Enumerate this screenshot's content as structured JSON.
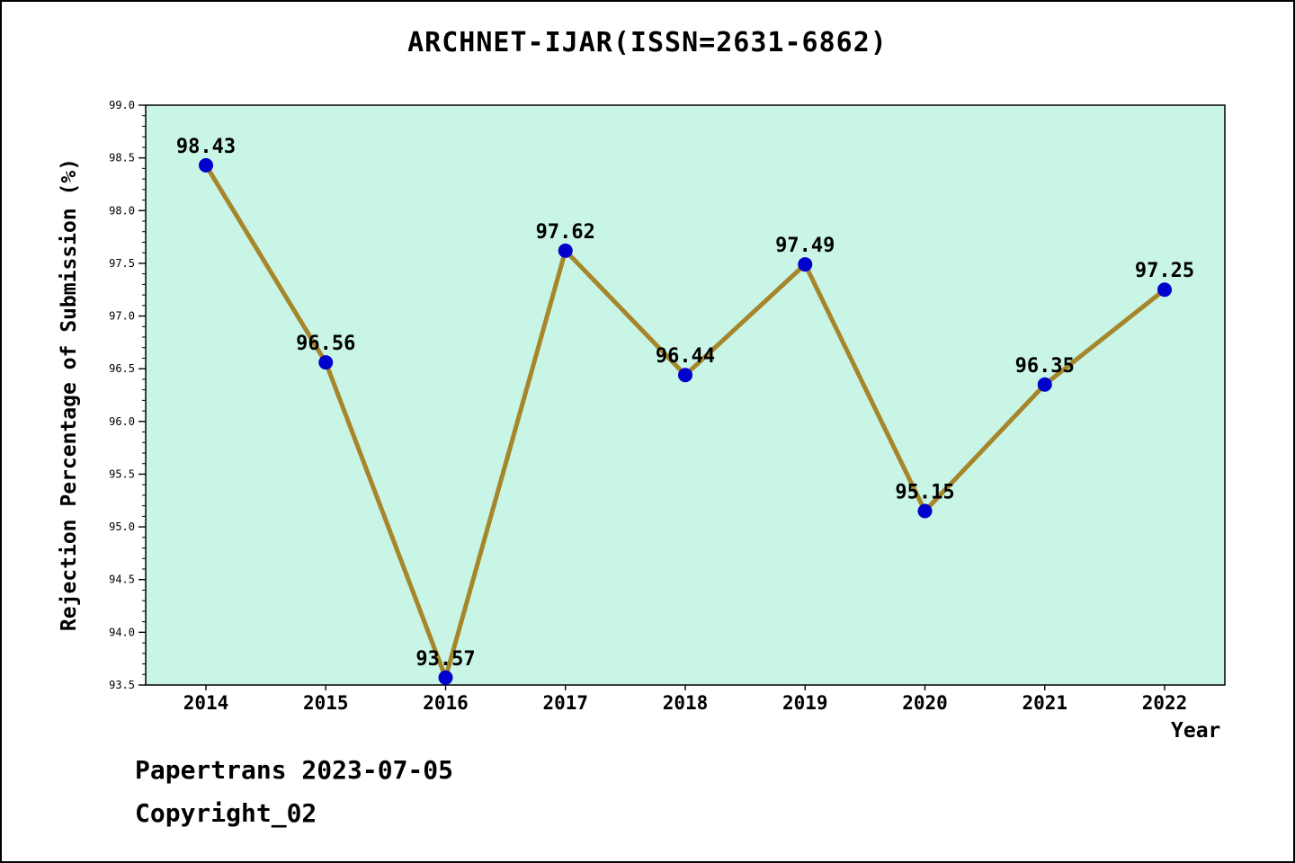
{
  "title": "ARCHNET-IJAR(ISSN=2631-6862)",
  "chart_data": {
    "type": "line",
    "x": [
      2014,
      2015,
      2016,
      2017,
      2018,
      2019,
      2020,
      2021,
      2022
    ],
    "series": [
      {
        "name": "Rejection Percentage of Submission",
        "values": [
          98.43,
          96.56,
          93.57,
          97.62,
          96.44,
          97.49,
          95.15,
          96.35,
          97.25
        ]
      }
    ],
    "title": "ARCHNET-IJAR(ISSN=2631-6862)",
    "xlabel": "Year",
    "ylabel": "Rejection Percentage of Submission (%)",
    "ylim": [
      93.5,
      99.0
    ],
    "y_major_tick": 0.5,
    "y_minor_tick": 0.1,
    "grid": false,
    "legend": false,
    "line_color": "#a6862b",
    "marker_color": "#0000cd",
    "plot_bg": "#c9f5e6",
    "axis_color": "#000000"
  },
  "footer": {
    "line1": "Papertrans 2023-07-05",
    "line2": "Copyright_02"
  }
}
